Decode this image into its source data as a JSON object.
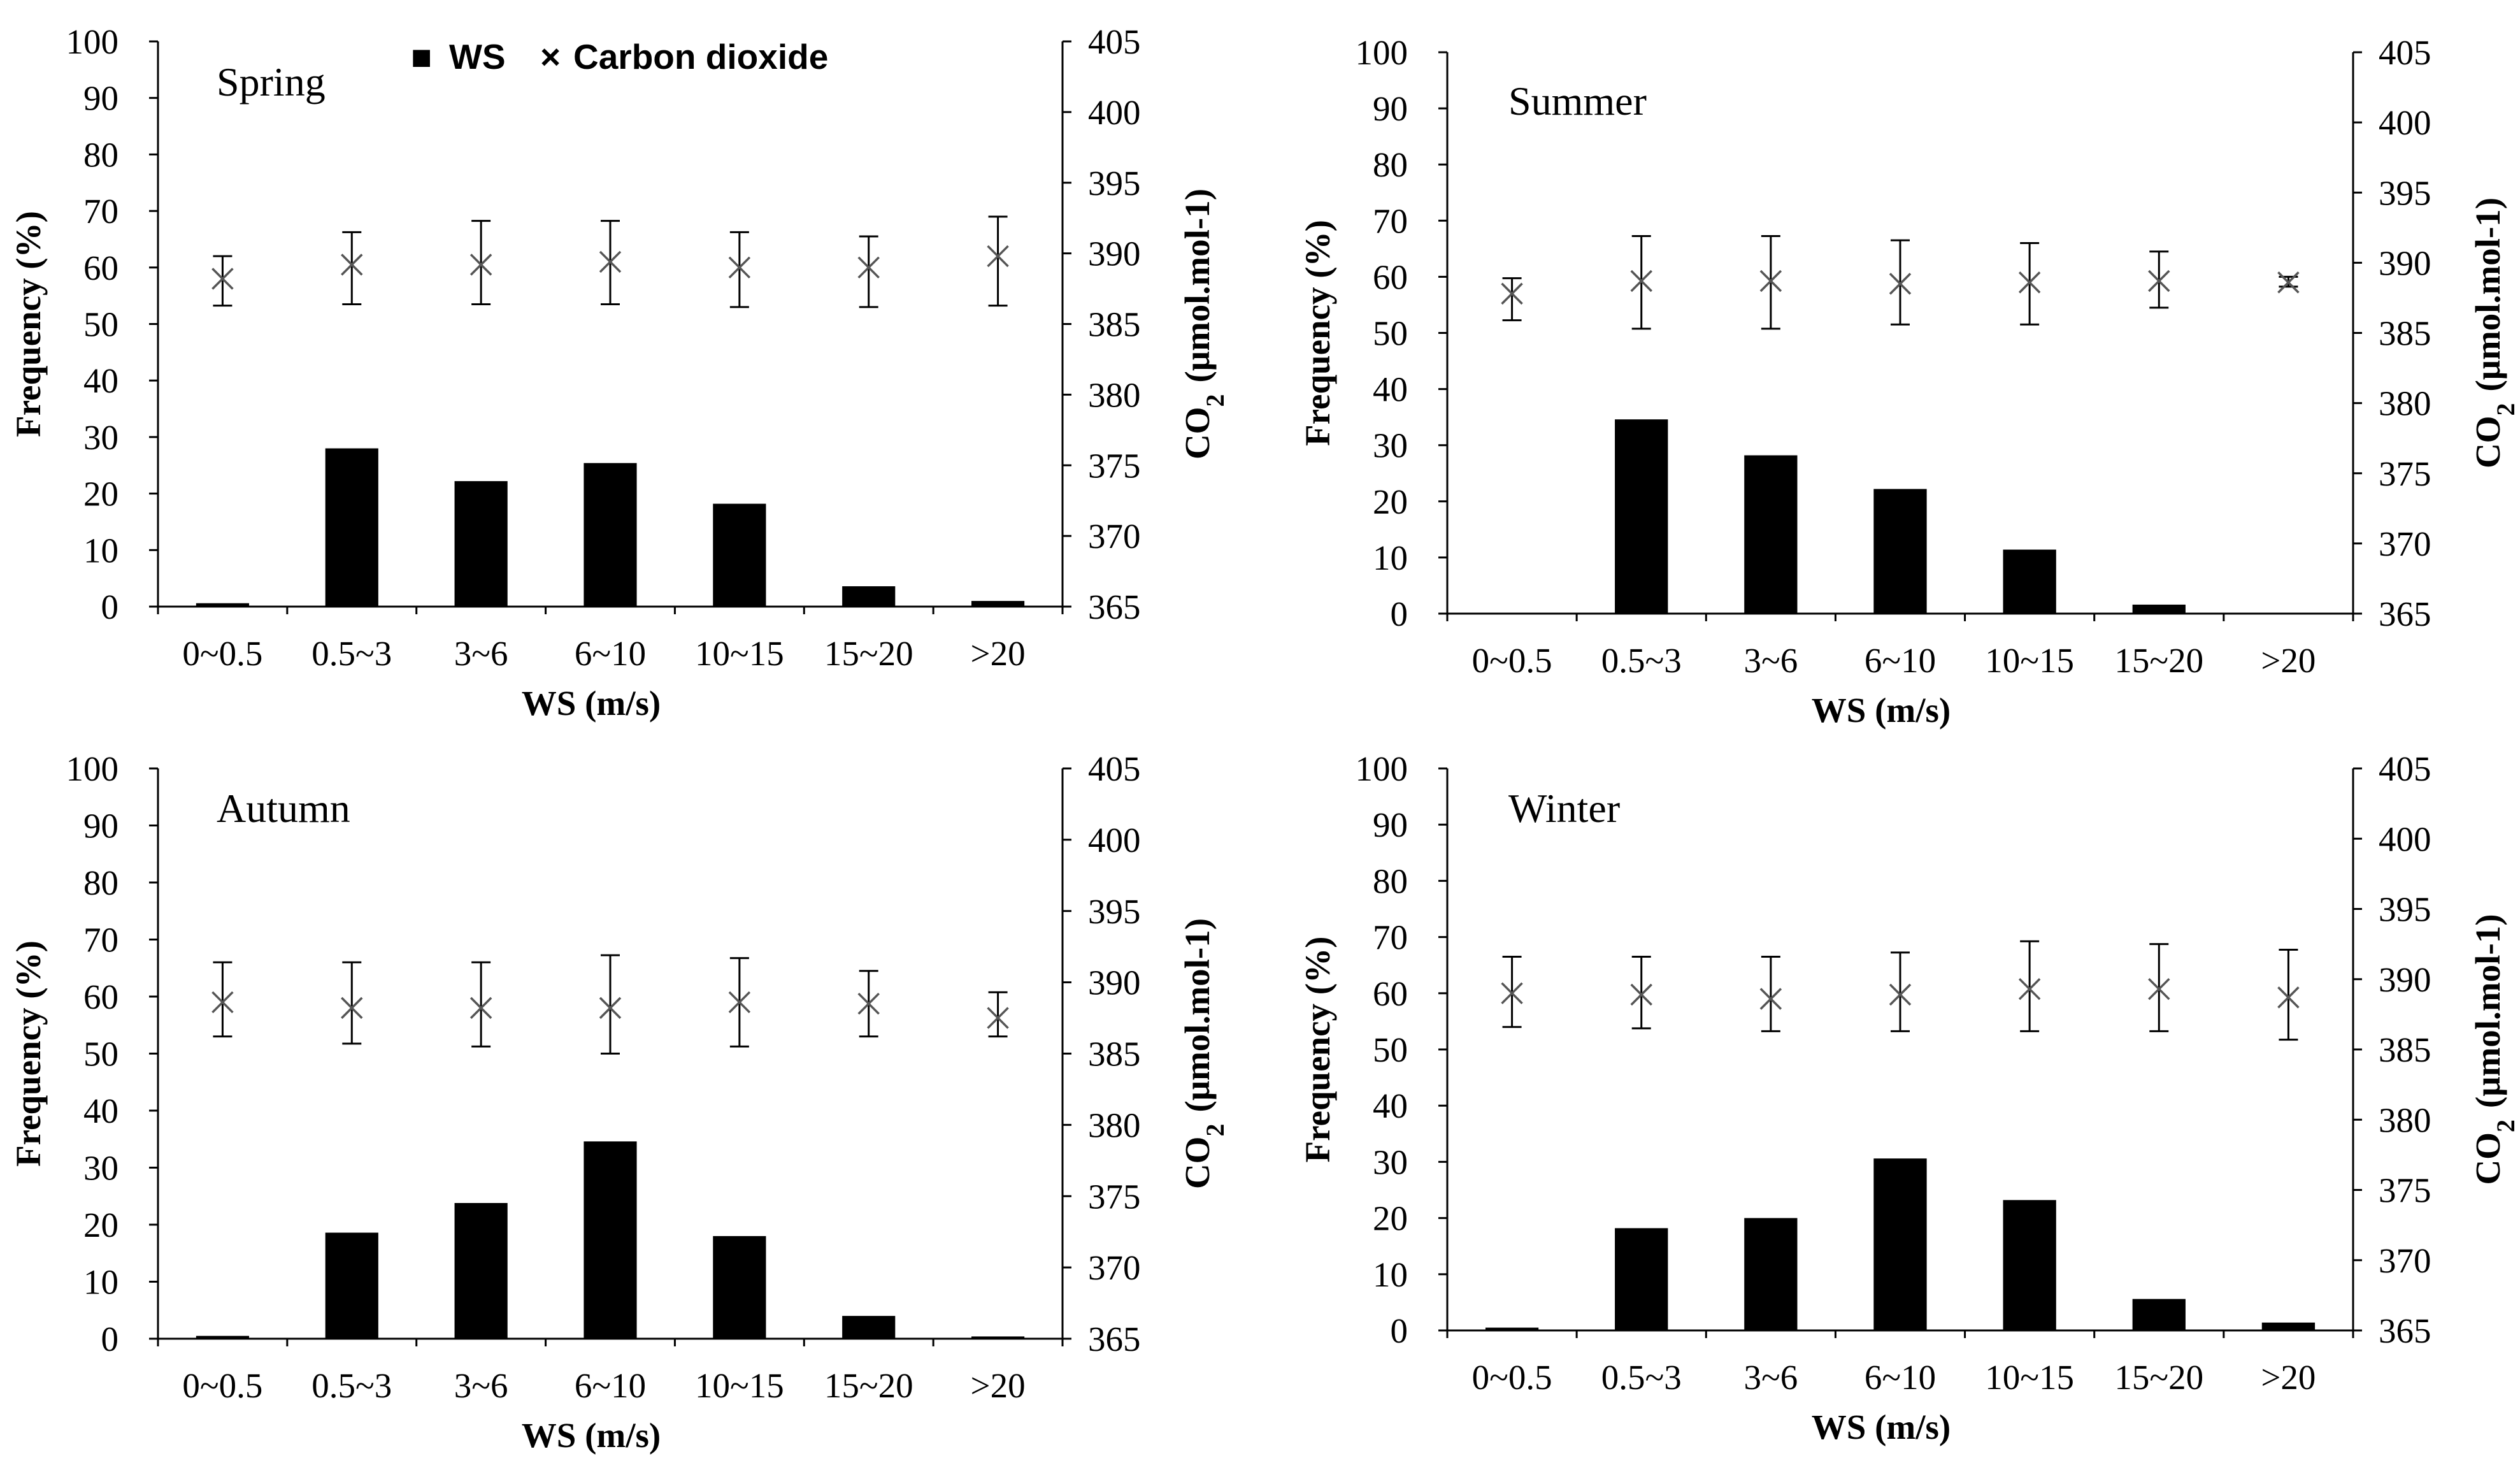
{
  "chart_data": [
    {
      "type": "bar",
      "title": "Spring",
      "categories": [
        "0~0.5",
        "0.5~3",
        "3~6",
        "6~10",
        "10~15",
        "15~20",
        ">20"
      ],
      "xlabel": "WS (m/s)",
      "ylabel": "Frequency (%)",
      "y2label_prefix": "CO",
      "y2label_sub": "2",
      "y2label_unit": "(μmol.mol-1)",
      "ylim": [
        0,
        100
      ],
      "y2lim": [
        365,
        405
      ],
      "yticks": [
        0,
        10,
        20,
        30,
        40,
        50,
        60,
        70,
        80,
        90,
        100
      ],
      "y2ticks": [
        365,
        370,
        375,
        380,
        385,
        390,
        395,
        400,
        405
      ],
      "series": [
        {
          "name": "WS",
          "kind": "bar",
          "axis": "left",
          "values": [
            0.6,
            28.0,
            22.2,
            25.4,
            18.2,
            3.6,
            1.0
          ]
        },
        {
          "name": "Carbon dioxide",
          "kind": "marker-errorbar",
          "axis": "right",
          "values": [
            388.2,
            389.2,
            389.2,
            389.4,
            389.0,
            389.0,
            389.8
          ],
          "err_low": [
            386.3,
            386.4,
            386.4,
            386.4,
            386.2,
            386.2,
            386.3
          ],
          "err_high": [
            389.8,
            391.5,
            392.3,
            392.3,
            391.5,
            391.2,
            392.6
          ]
        }
      ]
    },
    {
      "type": "bar",
      "title": "Summer",
      "categories": [
        "0~0.5",
        "0.5~3",
        "3~6",
        "6~10",
        "10~15",
        "15~20",
        ">20"
      ],
      "xlabel": "WS (m/s)",
      "ylabel": "Frequency (%)",
      "y2label_prefix": "CO",
      "y2label_sub": "2",
      "y2label_unit": "(μmol.mol-1)",
      "ylim": [
        0,
        100
      ],
      "y2lim": [
        365,
        405
      ],
      "yticks": [
        0,
        10,
        20,
        30,
        40,
        50,
        60,
        70,
        80,
        90,
        100
      ],
      "y2ticks": [
        365,
        370,
        375,
        380,
        385,
        390,
        395,
        400,
        405
      ],
      "series": [
        {
          "name": "WS",
          "kind": "bar",
          "axis": "left",
          "values": [
            0,
            34.6,
            28.2,
            22.2,
            11.4,
            1.6,
            0
          ]
        },
        {
          "name": "Carbon dioxide",
          "kind": "marker-errorbar",
          "axis": "right",
          "values": [
            387.8,
            388.7,
            388.7,
            388.5,
            388.6,
            388.7,
            388.6
          ],
          "err_low": [
            385.9,
            385.3,
            385.3,
            385.6,
            385.6,
            386.8,
            388.3
          ],
          "err_high": [
            388.9,
            391.9,
            391.9,
            391.6,
            391.4,
            390.8,
            389.0
          ]
        }
      ]
    },
    {
      "type": "bar",
      "title": "Autumn",
      "categories": [
        "0~0.5",
        "0.5~3",
        "3~6",
        "6~10",
        "10~15",
        "15~20",
        ">20"
      ],
      "xlabel": "WS (m/s)",
      "ylabel": "Frequency (%)",
      "y2label_prefix": "CO",
      "y2label_sub": "2",
      "y2label_unit": "(μmol.mol-1)",
      "ylim": [
        0,
        100
      ],
      "y2lim": [
        365,
        405
      ],
      "yticks": [
        0,
        10,
        20,
        30,
        40,
        50,
        60,
        70,
        80,
        90,
        100
      ],
      "y2ticks": [
        365,
        370,
        375,
        380,
        385,
        390,
        395,
        400,
        405
      ],
      "series": [
        {
          "name": "WS",
          "kind": "bar",
          "axis": "left",
          "values": [
            0.5,
            18.6,
            23.8,
            34.6,
            18.0,
            4.0,
            0.4
          ]
        },
        {
          "name": "Carbon dioxide",
          "kind": "marker-errorbar",
          "axis": "right",
          "values": [
            388.6,
            388.2,
            388.2,
            388.2,
            388.6,
            388.5,
            387.5
          ],
          "err_low": [
            386.2,
            385.7,
            385.5,
            385.0,
            385.5,
            386.2,
            386.2
          ],
          "err_high": [
            391.4,
            391.4,
            391.4,
            391.9,
            391.7,
            390.8,
            389.3
          ]
        }
      ]
    },
    {
      "type": "bar",
      "title": "Winter",
      "categories": [
        "0~0.5",
        "0.5~3",
        "3~6",
        "6~10",
        "10~15",
        "15~20",
        ">20"
      ],
      "xlabel": "WS (m/s)",
      "ylabel": "Frequency (%)",
      "y2label_prefix": "CO",
      "y2label_sub": "2",
      "y2label_unit": "(μmol.mol-1)",
      "ylim": [
        0,
        100
      ],
      "y2lim": [
        365,
        405
      ],
      "yticks": [
        0,
        10,
        20,
        30,
        40,
        50,
        60,
        70,
        80,
        90,
        100
      ],
      "y2ticks": [
        365,
        370,
        375,
        380,
        385,
        390,
        395,
        400,
        405
      ],
      "series": [
        {
          "name": "WS",
          "kind": "bar",
          "axis": "left",
          "values": [
            0.5,
            18.2,
            20.0,
            30.6,
            23.2,
            5.6,
            1.4
          ]
        },
        {
          "name": "Carbon dioxide",
          "kind": "marker-errorbar",
          "axis": "right",
          "values": [
            389.0,
            388.9,
            388.6,
            388.9,
            389.3,
            389.3,
            388.7
          ],
          "err_low": [
            386.6,
            386.5,
            386.3,
            386.3,
            386.3,
            386.3,
            385.7
          ],
          "err_high": [
            391.6,
            391.6,
            391.6,
            391.9,
            392.7,
            392.5,
            392.1
          ]
        }
      ]
    }
  ],
  "legend": {
    "items": [
      {
        "symbol": "■",
        "label": "WS"
      },
      {
        "symbol": "×",
        "label": "Carbon dioxide"
      }
    ]
  },
  "colors": {
    "bar": "#000000",
    "marker": "#555555",
    "axis": "#000000"
  }
}
